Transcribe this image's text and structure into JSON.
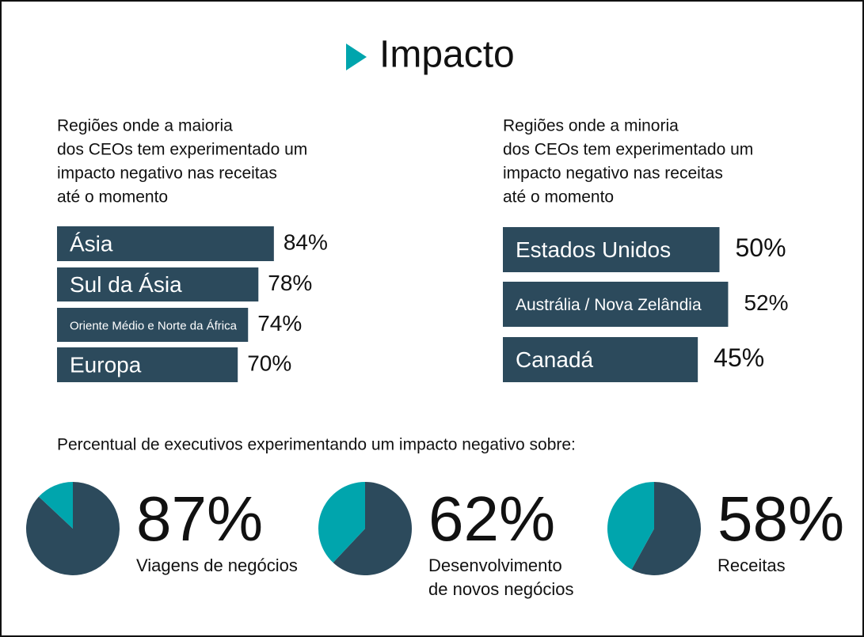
{
  "title": "Impacto",
  "section_title": "Percentual de executivos experimentando um impacto negativo sobre:",
  "chart_data": [
    {
      "type": "bar",
      "title": [
        "Regiões onde a maioria",
        "dos CEOs tem experimentado um",
        "impacto negativo nas receitas",
        "até o momento"
      ],
      "categories": [
        "Ásia",
        "Sul da Ásia",
        "Oriente Médio e Norte da África",
        "Europa"
      ],
      "values": [
        84,
        78,
        74,
        70
      ],
      "value_labels": [
        "84%",
        "78%",
        "74%",
        "70%"
      ],
      "color": "#2c4a5c"
    },
    {
      "type": "bar",
      "title": [
        "Regiões onde a minoria",
        "dos CEOs tem experimentado um",
        "impacto negativo nas receitas",
        "até o momento"
      ],
      "categories": [
        "Estados Unidos",
        "Austrália / Nova Zelândia",
        "Canadá"
      ],
      "values": [
        50,
        52,
        45
      ],
      "value_labels": [
        "50%",
        "52%",
        "45%"
      ],
      "color": "#2c4a5c"
    },
    {
      "type": "pie",
      "values": [
        87
      ],
      "value_labels": [
        "87%"
      ],
      "label": [
        "Viagens de negócios"
      ],
      "colors": [
        "#2c4a5c",
        "#00a5ad"
      ]
    },
    {
      "type": "pie",
      "values": [
        62
      ],
      "value_labels": [
        "62%"
      ],
      "label": [
        "Desenvolvimento",
        "de novos negócios"
      ],
      "colors": [
        "#2c4a5c",
        "#00a5ad"
      ]
    },
    {
      "type": "pie",
      "values": [
        58
      ],
      "value_labels": [
        "58%"
      ],
      "label": [
        "Receitas"
      ],
      "colors": [
        "#2c4a5c",
        "#00a5ad"
      ]
    }
  ]
}
